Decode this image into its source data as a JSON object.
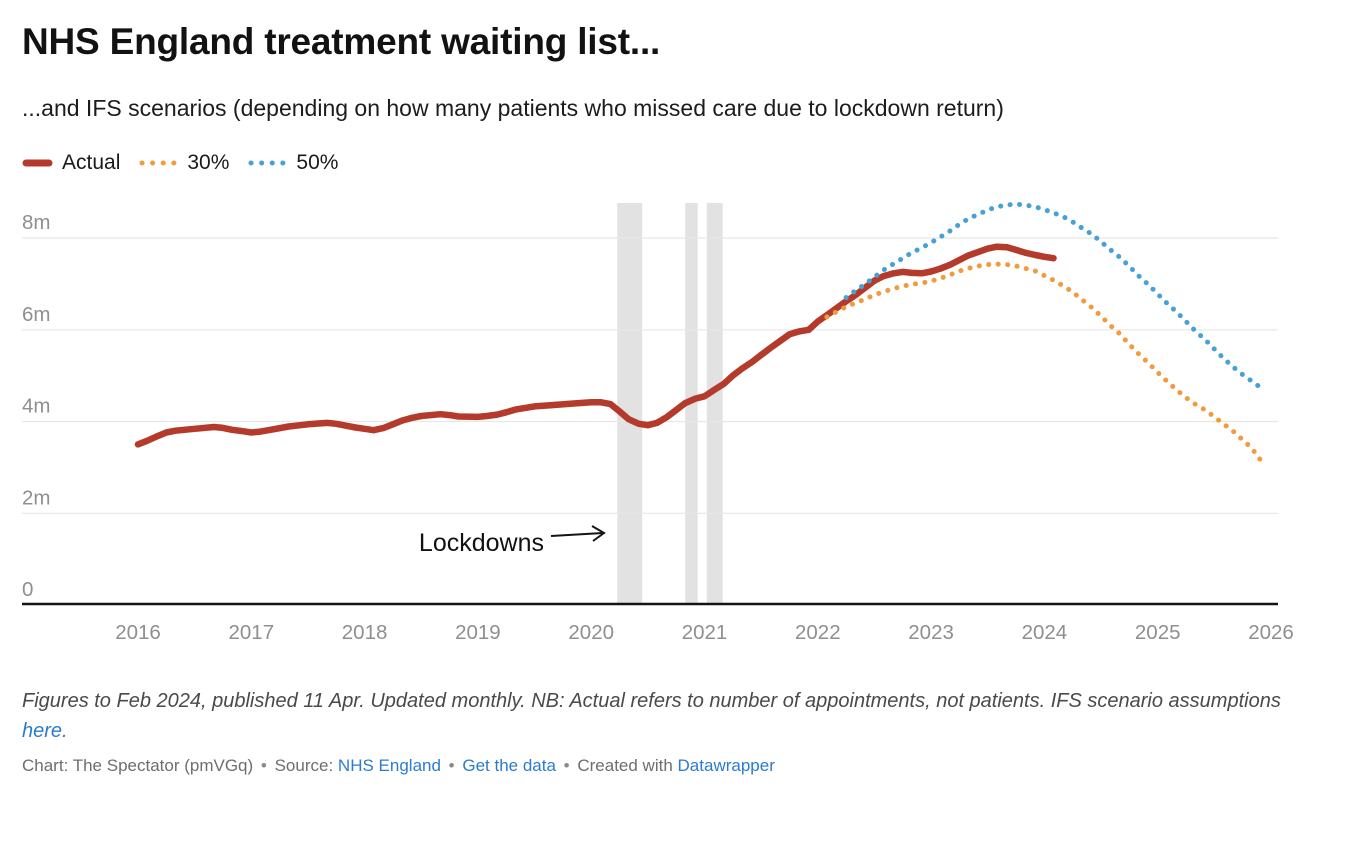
{
  "header": {
    "title": "NHS England treatment waiting list...",
    "subtitle": "...and IFS scenarios (depending on how many patients who missed care due to lockdown return)"
  },
  "legend": {
    "items": [
      {
        "label": "Actual",
        "color": "#b43b2b",
        "style": "solid"
      },
      {
        "label": "30%",
        "color": "#f29b3e",
        "style": "dotted"
      },
      {
        "label": "50%",
        "color": "#48a1d5",
        "style": "dotted"
      }
    ]
  },
  "chart_data": {
    "type": "line",
    "title": "NHS England treatment waiting list and IFS scenarios",
    "unit": "millions of appointments",
    "xlabel": "",
    "ylabel": "",
    "xlim": [
      2016,
      2026.2
    ],
    "ylim": [
      0,
      9
    ],
    "grid": true,
    "legend_position": "top-left",
    "colors": {
      "grid": "#e7e7e7",
      "band": "#e2e2e2",
      "axis": "#141414",
      "tick": "#8f8f8f"
    },
    "y_ticks": [
      {
        "value": 8,
        "label": "8m"
      },
      {
        "value": 6,
        "label": "6m"
      },
      {
        "value": 4,
        "label": "4m"
      },
      {
        "value": 2,
        "label": "2m"
      },
      {
        "value": 0,
        "label": "0"
      }
    ],
    "x_ticks": [
      2016,
      2017,
      2018,
      2019,
      2020,
      2021,
      2022,
      2023,
      2024,
      2025,
      2026
    ],
    "lockdown_bands": [
      {
        "from": 2020.23,
        "to": 2020.45
      },
      {
        "from": 2020.83,
        "to": 2020.94
      },
      {
        "from": 2021.02,
        "to": 2021.16
      }
    ],
    "annotation": {
      "text": "Lockdowns"
    },
    "series": [
      {
        "name": "Actual",
        "color": "#b43b2b",
        "style": "solid",
        "points": [
          [
            2016.0,
            3.5
          ],
          [
            2016.08,
            3.58
          ],
          [
            2016.17,
            3.68
          ],
          [
            2016.25,
            3.76
          ],
          [
            2016.33,
            3.8
          ],
          [
            2016.5,
            3.84
          ],
          [
            2016.67,
            3.88
          ],
          [
            2016.75,
            3.86
          ],
          [
            2016.83,
            3.82
          ],
          [
            2016.92,
            3.79
          ],
          [
            2017.0,
            3.76
          ],
          [
            2017.08,
            3.78
          ],
          [
            2017.17,
            3.82
          ],
          [
            2017.33,
            3.89
          ],
          [
            2017.5,
            3.94
          ],
          [
            2017.67,
            3.97
          ],
          [
            2017.75,
            3.95
          ],
          [
            2017.83,
            3.91
          ],
          [
            2017.92,
            3.87
          ],
          [
            2018.0,
            3.84
          ],
          [
            2018.08,
            3.81
          ],
          [
            2018.17,
            3.86
          ],
          [
            2018.25,
            3.94
          ],
          [
            2018.33,
            4.02
          ],
          [
            2018.42,
            4.08
          ],
          [
            2018.5,
            4.12
          ],
          [
            2018.67,
            4.16
          ],
          [
            2018.75,
            4.14
          ],
          [
            2018.83,
            4.11
          ],
          [
            2019.0,
            4.1
          ],
          [
            2019.08,
            4.12
          ],
          [
            2019.17,
            4.15
          ],
          [
            2019.25,
            4.2
          ],
          [
            2019.33,
            4.26
          ],
          [
            2019.5,
            4.33
          ],
          [
            2019.67,
            4.36
          ],
          [
            2019.83,
            4.39
          ],
          [
            2020.0,
            4.42
          ],
          [
            2020.08,
            4.42
          ],
          [
            2020.17,
            4.38
          ],
          [
            2020.25,
            4.22
          ],
          [
            2020.33,
            4.05
          ],
          [
            2020.42,
            3.95
          ],
          [
            2020.5,
            3.92
          ],
          [
            2020.58,
            3.97
          ],
          [
            2020.67,
            4.1
          ],
          [
            2020.75,
            4.25
          ],
          [
            2020.83,
            4.4
          ],
          [
            2020.92,
            4.5
          ],
          [
            2021.0,
            4.55
          ],
          [
            2021.08,
            4.68
          ],
          [
            2021.17,
            4.82
          ],
          [
            2021.25,
            5.0
          ],
          [
            2021.33,
            5.15
          ],
          [
            2021.42,
            5.3
          ],
          [
            2021.5,
            5.45
          ],
          [
            2021.58,
            5.6
          ],
          [
            2021.67,
            5.76
          ],
          [
            2021.75,
            5.9
          ],
          [
            2021.83,
            5.96
          ],
          [
            2021.92,
            6.0
          ],
          [
            2022.0,
            6.18
          ],
          [
            2022.08,
            6.32
          ],
          [
            2022.17,
            6.48
          ],
          [
            2022.25,
            6.62
          ],
          [
            2022.33,
            6.75
          ],
          [
            2022.42,
            6.92
          ],
          [
            2022.5,
            7.07
          ],
          [
            2022.58,
            7.17
          ],
          [
            2022.67,
            7.23
          ],
          [
            2022.75,
            7.26
          ],
          [
            2022.83,
            7.24
          ],
          [
            2022.92,
            7.23
          ],
          [
            2023.0,
            7.27
          ],
          [
            2023.08,
            7.33
          ],
          [
            2023.17,
            7.42
          ],
          [
            2023.25,
            7.52
          ],
          [
            2023.33,
            7.62
          ],
          [
            2023.42,
            7.7
          ],
          [
            2023.5,
            7.77
          ],
          [
            2023.58,
            7.81
          ],
          [
            2023.67,
            7.8
          ],
          [
            2023.75,
            7.74
          ],
          [
            2023.83,
            7.68
          ],
          [
            2023.92,
            7.63
          ],
          [
            2024.0,
            7.59
          ],
          [
            2024.08,
            7.56
          ]
        ]
      },
      {
        "name": "30%",
        "color": "#f29b3e",
        "style": "dotted",
        "points": [
          [
            2022.08,
            6.28
          ],
          [
            2022.17,
            6.4
          ],
          [
            2022.25,
            6.5
          ],
          [
            2022.33,
            6.58
          ],
          [
            2022.42,
            6.67
          ],
          [
            2022.5,
            6.76
          ],
          [
            2022.58,
            6.83
          ],
          [
            2022.67,
            6.9
          ],
          [
            2022.75,
            6.95
          ],
          [
            2022.83,
            6.99
          ],
          [
            2022.92,
            7.02
          ],
          [
            2023.0,
            7.06
          ],
          [
            2023.08,
            7.12
          ],
          [
            2023.17,
            7.2
          ],
          [
            2023.25,
            7.28
          ],
          [
            2023.33,
            7.34
          ],
          [
            2023.42,
            7.39
          ],
          [
            2023.5,
            7.42
          ],
          [
            2023.58,
            7.43
          ],
          [
            2023.67,
            7.42
          ],
          [
            2023.75,
            7.39
          ],
          [
            2023.83,
            7.34
          ],
          [
            2023.92,
            7.28
          ],
          [
            2024.0,
            7.18
          ],
          [
            2024.08,
            7.08
          ],
          [
            2024.17,
            6.95
          ],
          [
            2024.25,
            6.82
          ],
          [
            2024.33,
            6.66
          ],
          [
            2024.42,
            6.48
          ],
          [
            2024.5,
            6.3
          ],
          [
            2024.58,
            6.1
          ],
          [
            2024.67,
            5.9
          ],
          [
            2024.75,
            5.68
          ],
          [
            2024.83,
            5.48
          ],
          [
            2024.92,
            5.27
          ],
          [
            2025.0,
            5.07
          ],
          [
            2025.08,
            4.88
          ],
          [
            2025.17,
            4.68
          ],
          [
            2025.25,
            4.52
          ],
          [
            2025.33,
            4.38
          ],
          [
            2025.42,
            4.25
          ],
          [
            2025.5,
            4.1
          ],
          [
            2025.58,
            3.95
          ],
          [
            2025.67,
            3.78
          ],
          [
            2025.75,
            3.6
          ],
          [
            2025.83,
            3.42
          ],
          [
            2025.92,
            3.12
          ]
        ]
      },
      {
        "name": "50%",
        "color": "#48a1d5",
        "style": "dotted",
        "points": [
          [
            2022.25,
            6.7
          ],
          [
            2022.33,
            6.85
          ],
          [
            2022.42,
            7.0
          ],
          [
            2022.5,
            7.15
          ],
          [
            2022.58,
            7.3
          ],
          [
            2022.67,
            7.44
          ],
          [
            2022.75,
            7.56
          ],
          [
            2022.83,
            7.68
          ],
          [
            2022.92,
            7.79
          ],
          [
            2023.0,
            7.9
          ],
          [
            2023.08,
            8.02
          ],
          [
            2023.17,
            8.16
          ],
          [
            2023.25,
            8.3
          ],
          [
            2023.33,
            8.42
          ],
          [
            2023.42,
            8.52
          ],
          [
            2023.5,
            8.61
          ],
          [
            2023.58,
            8.68
          ],
          [
            2023.67,
            8.72
          ],
          [
            2023.75,
            8.74
          ],
          [
            2023.83,
            8.72
          ],
          [
            2023.92,
            8.68
          ],
          [
            2024.0,
            8.62
          ],
          [
            2024.08,
            8.55
          ],
          [
            2024.17,
            8.46
          ],
          [
            2024.25,
            8.35
          ],
          [
            2024.33,
            8.22
          ],
          [
            2024.42,
            8.08
          ],
          [
            2024.5,
            7.92
          ],
          [
            2024.58,
            7.75
          ],
          [
            2024.67,
            7.57
          ],
          [
            2024.75,
            7.38
          ],
          [
            2024.83,
            7.18
          ],
          [
            2024.92,
            6.98
          ],
          [
            2025.0,
            6.78
          ],
          [
            2025.08,
            6.58
          ],
          [
            2025.17,
            6.38
          ],
          [
            2025.25,
            6.18
          ],
          [
            2025.33,
            5.98
          ],
          [
            2025.42,
            5.78
          ],
          [
            2025.5,
            5.58
          ],
          [
            2025.58,
            5.38
          ],
          [
            2025.67,
            5.18
          ],
          [
            2025.75,
            5.02
          ],
          [
            2025.83,
            4.88
          ],
          [
            2025.92,
            4.72
          ]
        ]
      }
    ]
  },
  "footer": {
    "note": "Figures to Feb 2024, published 11 Apr. Updated monthly. NB: Actual refers to number of appointments, not patients. IFS scenario assumptions",
    "note_link": "here.",
    "attribution": {
      "prefix": "Chart: The Spectator (pmVGq)",
      "bullet": "•",
      "source_label": "Source:",
      "source_link": "NHS England",
      "get_data_link": "Get the data",
      "created_with": "Created with",
      "tool_link": "Datawrapper"
    }
  }
}
